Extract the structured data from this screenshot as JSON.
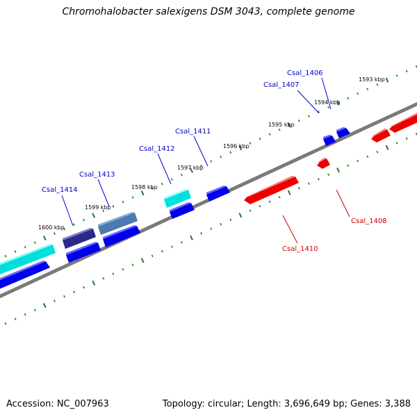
{
  "title": "Chromohalobacter salexigens DSM 3043, complete genome",
  "footer": {
    "accession": "Accession: NC_007963",
    "summary": "Topology: circular; Length: 3,696,649 bp; Genes: 3,388"
  },
  "colors": {
    "backbone": "#808080",
    "tick": "#1a7a1a",
    "label_forward": "#0000cc",
    "label_reverse": "#cc0000"
  },
  "kbp_labels": [
    "1593 kbp",
    "1594 kbp",
    "1595 kbp",
    "1596 kbp",
    "1597 kbp",
    "1598 kbp",
    "1599 kbp",
    "1600 kbp"
  ],
  "gene_labels": [
    {
      "text": "Csal_1406",
      "strand": "forward"
    },
    {
      "text": "Csal_1407",
      "strand": "forward"
    },
    {
      "text": "Csal_1411",
      "strand": "forward"
    },
    {
      "text": "Csal_1412",
      "strand": "forward"
    },
    {
      "text": "Csal_1413",
      "strand": "forward"
    },
    {
      "text": "Csal_1414",
      "strand": "forward"
    },
    {
      "text": "Csal_1408",
      "strand": "reverse"
    },
    {
      "text": "Csal_1410",
      "strand": "reverse"
    }
  ],
  "gene_colors": {
    "blue": "#0000ee",
    "cyan": "#00e5e5",
    "steel": "#4a7ab0",
    "navy": "#2a2a8a",
    "red": "#ee0000"
  }
}
